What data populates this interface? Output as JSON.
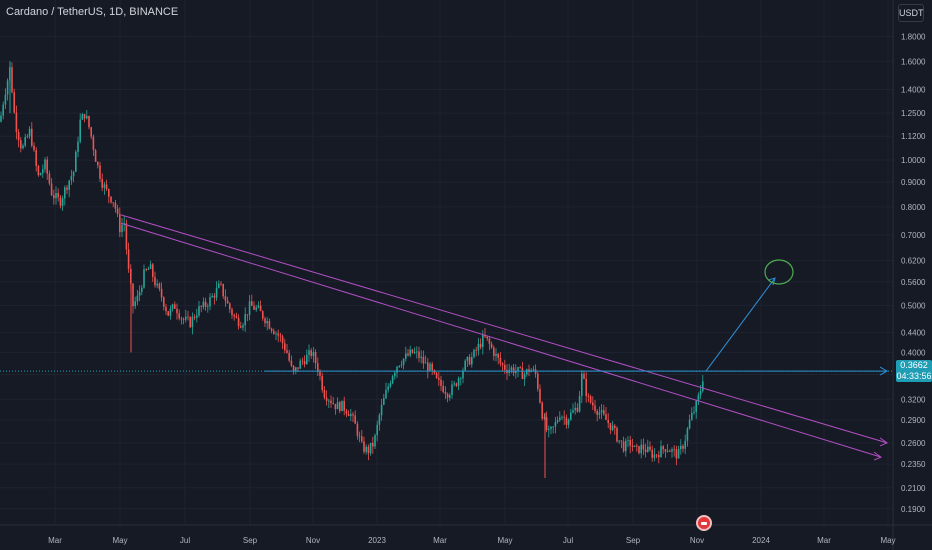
{
  "header": {
    "title": "Cardano / TetherUS, 1D, BINANCE",
    "currency": "USDT"
  },
  "last_price": {
    "value": "0.3662",
    "countdown": "04:33:56"
  },
  "colors": {
    "background": "#161a25",
    "grid": "#1f2330",
    "up": "#26a69a",
    "down": "#ef5350",
    "channel": "#b24fc4",
    "annotation": "#2f8fd6",
    "circle": "#4caf50",
    "price_tag": "#1e9db5"
  },
  "chart_data": {
    "type": "candlestick",
    "title": "Cardano / TetherUS, 1D, BINANCE",
    "yscale": "log",
    "ylim": [
      0.18,
      2.0
    ],
    "y_ticks": [
      "1.8000",
      "1.6000",
      "1.4000",
      "1.2500",
      "1.1200",
      "1.0000",
      "0.9000",
      "0.8000",
      "0.7000",
      "0.6200",
      "0.5600",
      "0.5000",
      "0.4400",
      "0.4000",
      "0.3600",
      "0.3200",
      "0.2900",
      "0.2600",
      "0.2350",
      "0.2100",
      "0.1900"
    ],
    "x_ticks": [
      "Mar",
      "May",
      "Jul",
      "Sep",
      "Nov",
      "2023",
      "Mar",
      "May",
      "Jul",
      "Sep",
      "Nov",
      "2024",
      "Mar",
      "May"
    ],
    "price_path": [
      [
        0,
        1.2
      ],
      [
        4,
        1.35
      ],
      [
        10,
        1.55
      ],
      [
        15,
        1.2
      ],
      [
        22,
        1.05
      ],
      [
        30,
        1.15
      ],
      [
        38,
        0.92
      ],
      [
        45,
        0.98
      ],
      [
        52,
        0.85
      ],
      [
        60,
        0.82
      ],
      [
        68,
        0.9
      ],
      [
        74,
        0.95
      ],
      [
        80,
        1.2
      ],
      [
        85,
        1.25
      ],
      [
        90,
        1.15
      ],
      [
        96,
        1.0
      ],
      [
        102,
        0.9
      ],
      [
        108,
        0.85
      ],
      [
        114,
        0.82
      ],
      [
        120,
        0.72
      ],
      [
        124,
        0.75
      ],
      [
        128,
        0.6
      ],
      [
        133,
        0.5
      ],
      [
        138,
        0.52
      ],
      [
        144,
        0.58
      ],
      [
        150,
        0.6
      ],
      [
        156,
        0.55
      ],
      [
        162,
        0.52
      ],
      [
        168,
        0.48
      ],
      [
        175,
        0.5
      ],
      [
        182,
        0.47
      ],
      [
        190,
        0.46
      ],
      [
        198,
        0.49
      ],
      [
        205,
        0.5
      ],
      [
        212,
        0.52
      ],
      [
        220,
        0.55
      ],
      [
        228,
        0.5
      ],
      [
        235,
        0.47
      ],
      [
        242,
        0.46
      ],
      [
        250,
        0.5
      ],
      [
        258,
        0.49
      ],
      [
        265,
        0.47
      ],
      [
        272,
        0.45
      ],
      [
        280,
        0.43
      ],
      [
        287,
        0.4
      ],
      [
        293,
        0.36
      ],
      [
        300,
        0.38
      ],
      [
        306,
        0.39
      ],
      [
        312,
        0.4
      ],
      [
        318,
        0.37
      ],
      [
        324,
        0.33
      ],
      [
        330,
        0.32
      ],
      [
        336,
        0.31
      ],
      [
        342,
        0.31
      ],
      [
        350,
        0.3
      ],
      [
        356,
        0.28
      ],
      [
        362,
        0.255
      ],
      [
        368,
        0.25
      ],
      [
        374,
        0.26
      ],
      [
        380,
        0.3
      ],
      [
        386,
        0.33
      ],
      [
        392,
        0.36
      ],
      [
        398,
        0.38
      ],
      [
        405,
        0.39
      ],
      [
        412,
        0.4
      ],
      [
        418,
        0.395
      ],
      [
        424,
        0.38
      ],
      [
        430,
        0.37
      ],
      [
        436,
        0.35
      ],
      [
        442,
        0.34
      ],
      [
        448,
        0.33
      ],
      [
        454,
        0.34
      ],
      [
        460,
        0.36
      ],
      [
        466,
        0.38
      ],
      [
        472,
        0.39
      ],
      [
        478,
        0.41
      ],
      [
        484,
        0.43
      ],
      [
        488,
        0.42
      ],
      [
        494,
        0.4
      ],
      [
        500,
        0.38
      ],
      [
        506,
        0.37
      ],
      [
        512,
        0.37
      ],
      [
        518,
        0.365
      ],
      [
        524,
        0.36
      ],
      [
        530,
        0.37
      ],
      [
        536,
        0.36
      ],
      [
        542,
        0.3
      ],
      [
        548,
        0.27
      ],
      [
        554,
        0.28
      ],
      [
        560,
        0.3
      ],
      [
        566,
        0.29
      ],
      [
        572,
        0.3
      ],
      [
        578,
        0.31
      ],
      [
        582,
        0.36
      ],
      [
        588,
        0.32
      ],
      [
        594,
        0.31
      ],
      [
        600,
        0.3
      ],
      [
        606,
        0.29
      ],
      [
        612,
        0.28
      ],
      [
        618,
        0.265
      ],
      [
        624,
        0.255
      ],
      [
        630,
        0.26
      ],
      [
        636,
        0.25
      ],
      [
        642,
        0.255
      ],
      [
        648,
        0.25
      ],
      [
        654,
        0.245
      ],
      [
        660,
        0.25
      ],
      [
        666,
        0.255
      ],
      [
        672,
        0.25
      ],
      [
        678,
        0.245
      ],
      [
        684,
        0.26
      ],
      [
        690,
        0.29
      ],
      [
        696,
        0.31
      ],
      [
        700,
        0.33
      ],
      [
        704,
        0.366
      ]
    ],
    "series": [
      {
        "name": "",
        "type": "trendline",
        "points": [
          [
            121,
            0.77
          ],
          [
            887,
            0.26
          ]
        ]
      },
      {
        "name": "",
        "type": "trendline",
        "points": [
          [
            121,
            0.74
          ],
          [
            881,
            0.243
          ]
        ]
      },
      {
        "name": "",
        "type": "hline",
        "value": 0.366,
        "x_range": [
          265,
          887
        ]
      },
      {
        "name": "",
        "type": "arrow",
        "from": [
          706,
          0.366
        ],
        "to": [
          775,
          0.57
        ]
      }
    ]
  }
}
